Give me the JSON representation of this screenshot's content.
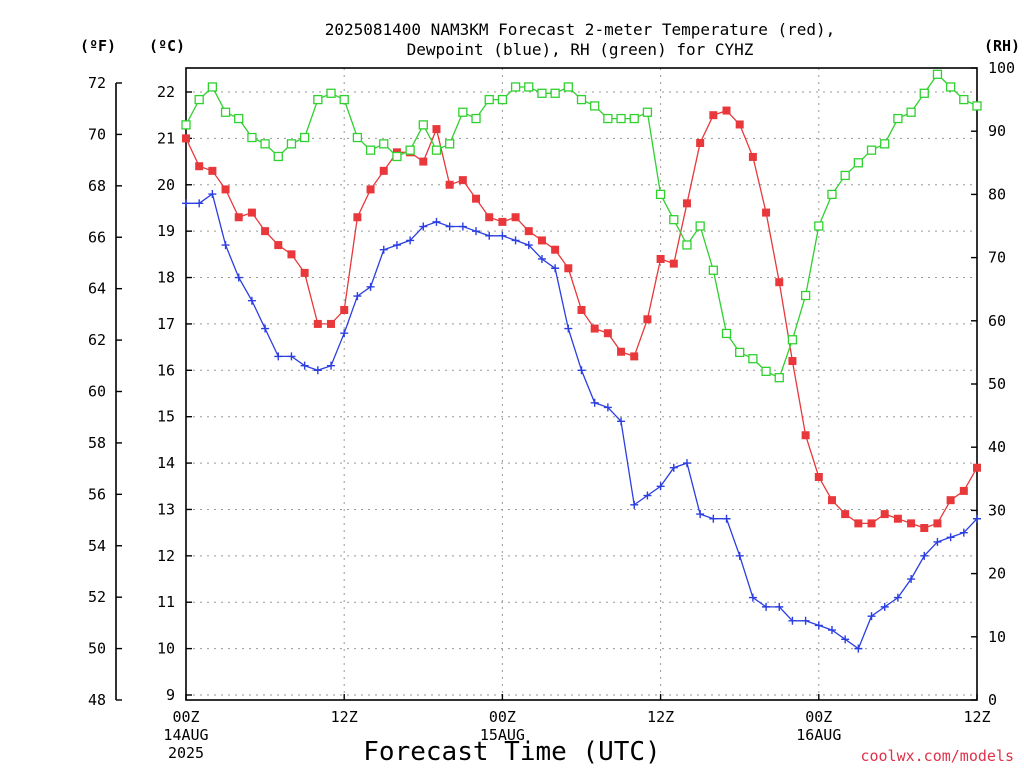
{
  "chart_data": {
    "type": "line",
    "title": "2025081400 NAM3KM Forecast 2-meter Temperature (red),",
    "subtitle": "Dewpoint (blue), RH (green) for CYHZ",
    "xlabel": "Forecast Time (UTC)",
    "credit": "coolwx.com/models",
    "unit_f": "(ºF)",
    "unit_c": "(ºC)",
    "unit_rh": "(RH)",
    "x_ticks": [
      {
        "hour": 0,
        "lines": [
          "00Z",
          "14AUG",
          "2025"
        ]
      },
      {
        "hour": 12,
        "lines": [
          "12Z"
        ]
      },
      {
        "hour": 24,
        "lines": [
          "00Z",
          "15AUG"
        ]
      },
      {
        "hour": 36,
        "lines": [
          "12Z"
        ]
      },
      {
        "hour": 48,
        "lines": [
          "00Z",
          "16AUG"
        ]
      },
      {
        "hour": 60,
        "lines": [
          "12Z"
        ]
      }
    ],
    "xlim": [
      0,
      60
    ],
    "f_ticks": [
      "48",
      "50",
      "52",
      "54",
      "56",
      "58",
      "60",
      "62",
      "64",
      "66",
      "68",
      "70",
      "72"
    ],
    "f_range": [
      48,
      72
    ],
    "c_ticks": [
      "9",
      "10",
      "11",
      "12",
      "13",
      "14",
      "15",
      "16",
      "17",
      "18",
      "19",
      "20",
      "21",
      "22"
    ],
    "c_range": [
      9,
      22
    ],
    "rh_ticks": [
      "0",
      "10",
      "20",
      "30",
      "40",
      "50",
      "60",
      "70",
      "80",
      "90",
      "100"
    ],
    "rh_range": [
      0,
      100
    ],
    "grid": true,
    "series": [
      {
        "name": "Temperature",
        "units": "degC",
        "color": "#e8383b",
        "marker": "filled-square",
        "x": [
          0,
          1,
          2,
          3,
          4,
          5,
          6,
          7,
          8,
          9,
          10,
          11,
          12,
          13,
          14,
          15,
          16,
          17,
          18,
          19,
          20,
          21,
          22,
          23,
          24,
          25,
          26,
          27,
          28,
          29,
          30,
          31,
          32,
          33,
          34,
          35,
          36,
          37,
          38,
          39,
          40,
          41,
          42,
          43,
          44,
          45,
          46,
          47,
          48,
          49,
          50,
          51,
          52,
          53,
          54,
          55,
          56,
          57,
          58,
          59,
          60
        ],
        "values": [
          21.0,
          20.4,
          20.3,
          19.9,
          19.3,
          19.4,
          19.0,
          18.7,
          18.5,
          18.1,
          17.0,
          17.0,
          17.3,
          19.3,
          19.9,
          20.3,
          20.7,
          20.7,
          20.5,
          21.2,
          20.0,
          20.1,
          19.7,
          19.3,
          19.2,
          19.3,
          19.0,
          18.8,
          18.6,
          18.2,
          17.3,
          16.9,
          16.8,
          16.4,
          16.3,
          17.1,
          18.4,
          18.3,
          19.6,
          20.9,
          21.5,
          21.6,
          21.3,
          20.6,
          19.4,
          17.9,
          16.2,
          14.6,
          13.7,
          13.2,
          12.9,
          12.7,
          12.7,
          12.9,
          12.8,
          12.7,
          12.6,
          12.7,
          13.2,
          13.4,
          13.9
        ]
      },
      {
        "name": "Dewpoint",
        "units": "degC",
        "color": "#2b3ee0",
        "marker": "plus",
        "x": [
          0,
          1,
          2,
          3,
          4,
          5,
          6,
          7,
          8,
          9,
          10,
          11,
          12,
          13,
          14,
          15,
          16,
          17,
          18,
          19,
          20,
          21,
          22,
          23,
          24,
          25,
          26,
          27,
          28,
          29,
          30,
          31,
          32,
          33,
          34,
          35,
          36,
          37,
          38,
          39,
          40,
          41,
          42,
          43,
          44,
          45,
          46,
          47,
          48,
          49,
          50,
          51,
          52,
          53,
          54,
          55,
          56,
          57,
          58,
          59,
          60
        ],
        "values": [
          19.6,
          19.6,
          19.8,
          18.7,
          18.0,
          17.5,
          16.9,
          16.3,
          16.3,
          16.1,
          16.0,
          16.1,
          16.8,
          17.6,
          17.8,
          18.6,
          18.7,
          18.8,
          19.1,
          19.2,
          19.1,
          19.1,
          19.0,
          18.9,
          18.9,
          18.8,
          18.7,
          18.4,
          18.2,
          16.9,
          16.0,
          15.3,
          15.2,
          14.9,
          13.1,
          13.3,
          13.5,
          13.9,
          14.0,
          12.9,
          12.8,
          12.8,
          12.0,
          11.1,
          10.9,
          10.9,
          10.6,
          10.6,
          10.5,
          10.4,
          10.2,
          10.0,
          10.7,
          10.9,
          11.1,
          11.5,
          12.0,
          12.3,
          12.4,
          12.5,
          12.8
        ]
      },
      {
        "name": "RH",
        "units": "percent",
        "color": "#2fd12f",
        "marker": "open-square",
        "x": [
          0,
          1,
          2,
          3,
          4,
          5,
          6,
          7,
          8,
          9,
          10,
          11,
          12,
          13,
          14,
          15,
          16,
          17,
          18,
          19,
          20,
          21,
          22,
          23,
          24,
          25,
          26,
          27,
          28,
          29,
          30,
          31,
          32,
          33,
          34,
          35,
          36,
          37,
          38,
          39,
          40,
          41,
          42,
          43,
          44,
          45,
          46,
          47,
          48,
          49,
          50,
          51,
          52,
          53,
          54,
          55,
          56,
          57,
          58,
          59,
          60
        ],
        "values": [
          91,
          95,
          97,
          93,
          92,
          89,
          88,
          86,
          88,
          89,
          95,
          96,
          95,
          89,
          87,
          88,
          86,
          87,
          91,
          87,
          88,
          93,
          92,
          95,
          95,
          97,
          97,
          96,
          96,
          97,
          95,
          94,
          92,
          92,
          92,
          93,
          80,
          76,
          72,
          75,
          68,
          58,
          55,
          54,
          52,
          51,
          57,
          64,
          75,
          80,
          83,
          85,
          87,
          88,
          92,
          93,
          96,
          99,
          97,
          95,
          94
        ]
      }
    ]
  }
}
